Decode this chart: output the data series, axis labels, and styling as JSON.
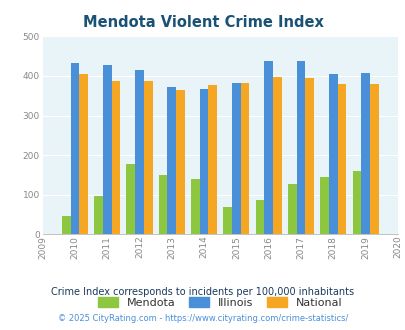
{
  "title": "Mendota Violent Crime Index",
  "years": [
    2009,
    2010,
    2011,
    2012,
    2013,
    2014,
    2015,
    2016,
    2017,
    2018,
    2019,
    2020
  ],
  "bar_years": [
    2010,
    2011,
    2012,
    2013,
    2014,
    2015,
    2016,
    2017,
    2018,
    2019
  ],
  "mendota": [
    47,
    96,
    178,
    150,
    140,
    70,
    87,
    128,
    145,
    160
  ],
  "illinois": [
    433,
    428,
    415,
    372,
    368,
    383,
    437,
    437,
    404,
    408
  ],
  "national": [
    405,
    387,
    388,
    365,
    376,
    383,
    397,
    394,
    379,
    379
  ],
  "mendota_color": "#8dc63f",
  "illinois_color": "#4a90d9",
  "national_color": "#f5a623",
  "ylim": [
    0,
    500
  ],
  "yticks": [
    0,
    100,
    200,
    300,
    400,
    500
  ],
  "bg_color": "#e8f4f8",
  "grid_color": "#c8dce8",
  "title_color": "#1a5276",
  "subtitle": "Crime Index corresponds to incidents per 100,000 inhabitants",
  "footer": "© 2025 CityRating.com - https://www.cityrating.com/crime-statistics/",
  "subtitle_color": "#1a3a5c",
  "footer_color": "#4a90d9"
}
